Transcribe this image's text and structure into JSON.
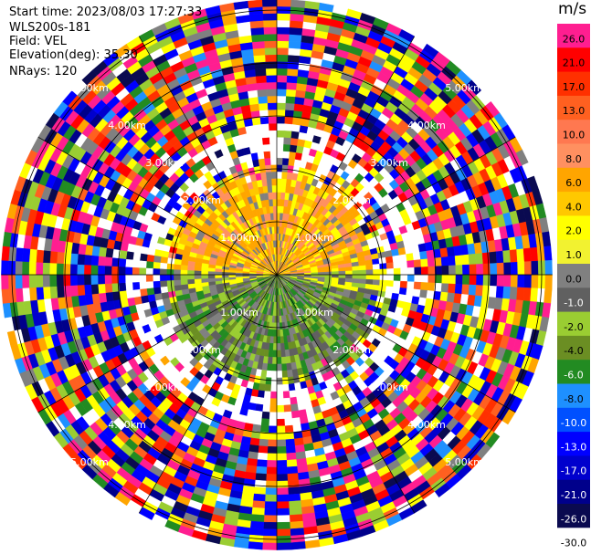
{
  "header": {
    "start_time": "Start time: 2023/08/03 17:27:33",
    "instrument": "WLS200s-181",
    "field": "Field: VEL",
    "elevation": "Elevation(deg): 35.30",
    "nrays": "NRays: 120"
  },
  "chart_data": {
    "type": "heatmap",
    "projection": "polar PPI",
    "title": "",
    "field": "VEL",
    "units": "m/s",
    "elevation_deg": 35.3,
    "n_rays": 120,
    "range_rings_km": [
      1.0,
      2.0,
      3.0,
      4.0,
      5.0
    ],
    "ring_labels": [
      "1.00km",
      "2.00km",
      "3.00km",
      "4.00km",
      "5.00km"
    ],
    "max_range_km": 5.2,
    "colorbar": {
      "unit_label": "m/s",
      "tick_labels": [
        "26.0",
        "21.0",
        "17.0",
        "13.0",
        "10.0",
        "8.0",
        "6.0",
        "4.0",
        "2.0",
        "1.0",
        "0.0",
        "-1.0",
        "-2.0",
        "-4.0",
        "-6.0",
        "-8.0",
        "-10.0",
        "-13.0",
        "-17.0",
        "-21.0",
        "-26.0",
        "-30.0"
      ],
      "colors": [
        "#ff1e90",
        "#ff0000",
        "#ff3000",
        "#ff6020",
        "#ff7850",
        "#ff9060",
        "#ffa500",
        "#ffc800",
        "#ffff00",
        "#f2f230",
        "#808080",
        "#606060",
        "#9acd32",
        "#6b8e23",
        "#228b22",
        "#1e90ff",
        "#0050ff",
        "#0000ff",
        "#0000cd",
        "#00008b",
        "#0a0a50",
        "#ffffff"
      ]
    },
    "field_pattern": {
      "description": "Clean region out to ~2.2 km: positive velocities (yellow/orange) in northern half, negative (grey/green) in southern half; noisy speckle beyond.",
      "clean_range_km": 2.2
    }
  }
}
